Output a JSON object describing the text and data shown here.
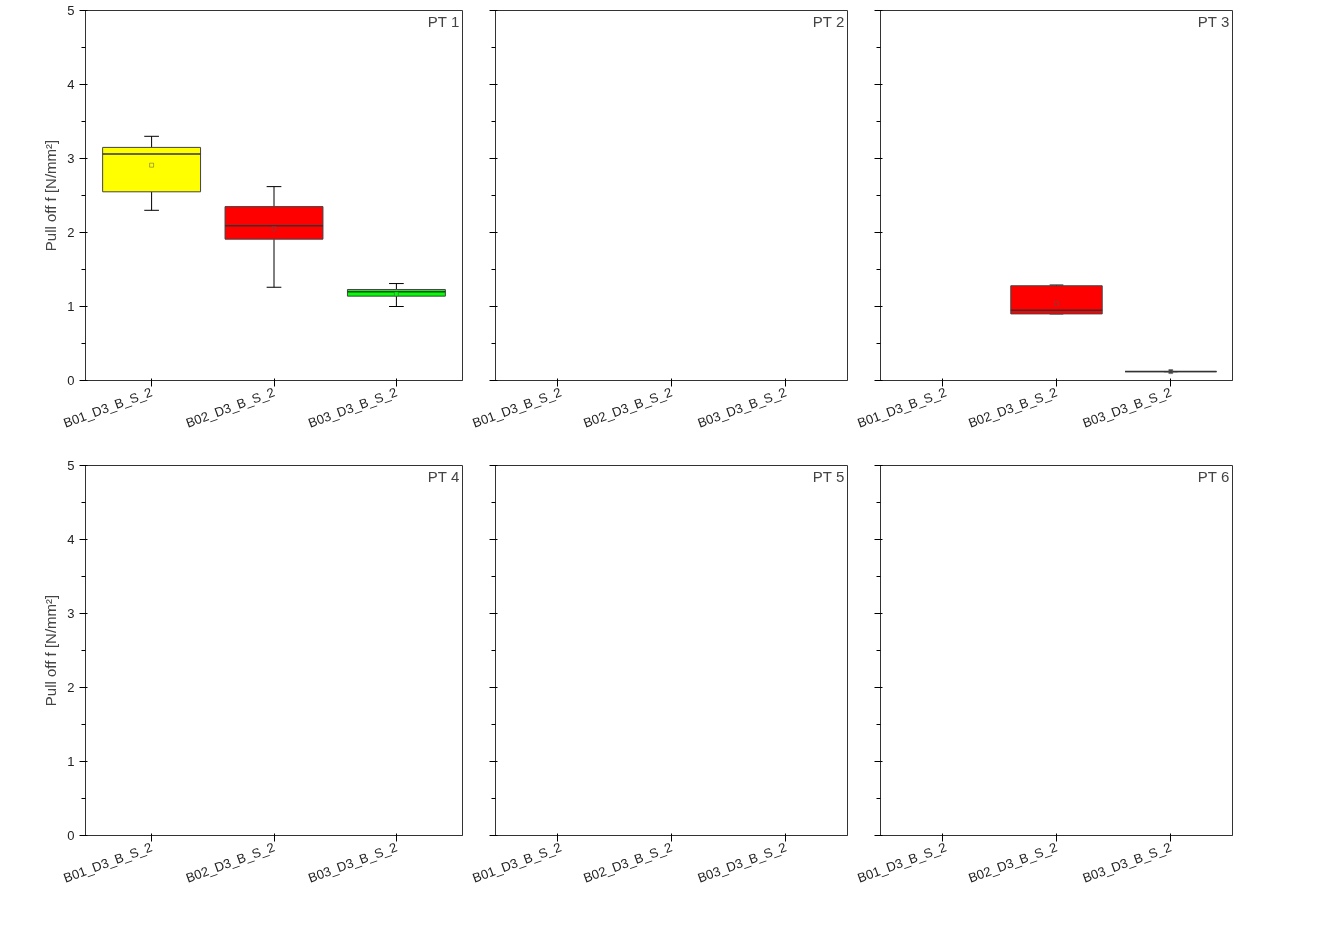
{
  "chart_data": [
    {
      "type": "box",
      "title": "PT 1",
      "ylabel": "Pull off f [N/mm²]",
      "categories": [
        "B01_D3_B_S_2",
        "B02_D3_B_S_2",
        "B03_D3_B_S_2"
      ],
      "colors": [
        "#ffff00",
        "#ff0000",
        "#00ff00"
      ],
      "ylim": [
        0,
        5
      ],
      "yticks": [
        0,
        1,
        2,
        3,
        4,
        5
      ],
      "boxes": [
        {
          "low": 2.3,
          "q1": 2.55,
          "median": 3.06,
          "q3": 3.15,
          "high": 3.3,
          "mean": 2.91
        },
        {
          "low": 1.26,
          "q1": 1.91,
          "median": 2.09,
          "q3": 2.35,
          "high": 2.62,
          "mean": 2.05
        },
        {
          "low": 1.0,
          "q1": 1.14,
          "median": 1.2,
          "q3": 1.23,
          "high": 1.31,
          "mean": 1.17
        }
      ]
    },
    {
      "type": "box",
      "title": "PT 2",
      "categories": [
        "B01_D3_B_S_2",
        "B02_D3_B_S_2",
        "B03_D3_B_S_2"
      ],
      "ylim": [
        0,
        5
      ],
      "yticks": [
        {
          "value": 0,
          "label": null
        },
        {
          "value": 1,
          "label": null
        },
        {
          "value": 2,
          "label": null
        },
        {
          "value": 3,
          "label": null
        },
        {
          "value": 4,
          "label": null
        },
        {
          "value": 5,
          "label": null
        }
      ],
      "tick_labels": "x",
      "boxes": [
        null,
        null,
        null
      ]
    },
    {
      "type": "box",
      "title": "PT 3",
      "categories": [
        "B01_D3_B_S_2",
        "B02_D3_B_S_2",
        "B03_D3_B_S_2"
      ],
      "colors": [
        null,
        "#ff0000",
        "#444444"
      ],
      "ylim": [
        0,
        5
      ],
      "yticks": [
        {
          "value": 0,
          "label": null
        },
        {
          "value": 1,
          "label": null
        },
        {
          "value": 2,
          "label": null
        },
        {
          "value": 3,
          "label": null
        },
        {
          "value": 4,
          "label": null
        },
        {
          "value": 5,
          "label": null
        }
      ],
      "tick_labels": "x",
      "boxes": [
        null,
        {
          "low": 0.9,
          "q1": 0.9,
          "median": 0.95,
          "q3": 1.28,
          "high": 1.29,
          "mean": 1.04
        },
        {
          "low": 0.12,
          "q1": 0.12,
          "median": 0.12,
          "q3": 0.12,
          "high": 0.12,
          "mean": 0.12
        }
      ]
    },
    {
      "type": "box",
      "title": "PT 4",
      "ylabel": "Pull off f [N/mm²]",
      "categories": [
        "B01_D3_B_S_2",
        "B02_D3_B_S_2",
        "B03_D3_B_S_2"
      ],
      "ylim": [
        0,
        5
      ],
      "yticks": [
        0,
        1,
        2,
        3,
        4,
        5
      ],
      "boxes": [
        null,
        null,
        null
      ]
    },
    {
      "type": "box",
      "title": "PT 5",
      "categories": [
        "B01_D3_B_S_2",
        "B02_D3_B_S_2",
        "B03_D3_B_S_2"
      ],
      "ylim": [
        0,
        5
      ],
      "yticks": [
        {
          "value": 0,
          "label": null
        },
        {
          "value": 1,
          "label": null
        },
        {
          "value": 2,
          "label": null
        },
        {
          "value": 3,
          "label": null
        },
        {
          "value": 4,
          "label": null
        },
        {
          "value": 5,
          "label": null
        }
      ],
      "tick_labels": "x",
      "boxes": [
        null,
        null,
        null
      ]
    },
    {
      "type": "box",
      "title": "PT 6",
      "categories": [
        "B01_D3_B_S_2",
        "B02_D3_B_S_2",
        "B03_D3_B_S_2"
      ],
      "ylim": [
        0,
        5
      ],
      "yticks": [
        {
          "value": 0,
          "label": null
        },
        {
          "value": 1,
          "label": null
        },
        {
          "value": 2,
          "label": null
        },
        {
          "value": 3,
          "label": null
        },
        {
          "value": 4,
          "label": null
        },
        {
          "value": 5,
          "label": null
        }
      ],
      "tick_labels": "x",
      "boxes": [
        null,
        null,
        null
      ]
    }
  ]
}
